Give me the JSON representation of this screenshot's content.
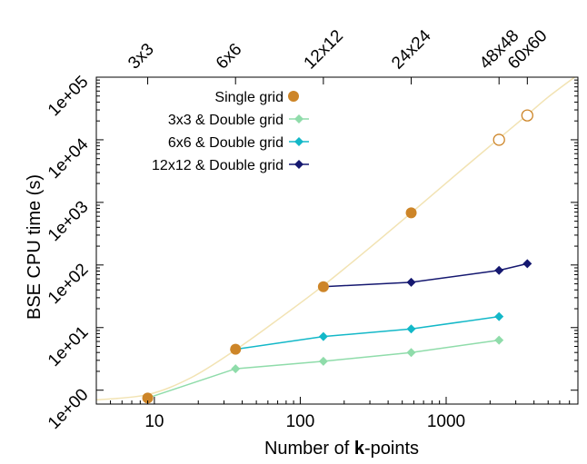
{
  "chart_data": {
    "type": "line",
    "xlabel_prefix": "Number of ",
    "xlabel_bold": "k",
    "xlabel_suffix": "-points",
    "ylabel": "BSE CPU time (s)",
    "x_scale": "log",
    "y_scale": "log",
    "xlim": [
      4,
      8000
    ],
    "ylim": [
      0.6,
      100000
    ],
    "x_ticks": [
      10,
      100,
      1000
    ],
    "x_tick_labels": [
      "10",
      "100",
      "1000"
    ],
    "y_ticks": [
      1,
      10,
      100,
      1000,
      10000,
      100000
    ],
    "y_tick_labels": [
      "1e+00",
      "1e+01",
      "1e+02",
      "1e+03",
      "1e+04",
      "1e+05"
    ],
    "top_axis_ticks": [
      {
        "x": 9,
        "label": "3x3"
      },
      {
        "x": 36,
        "label": "6x6"
      },
      {
        "x": 144,
        "label": "12x12"
      },
      {
        "x": 576,
        "label": "24x24"
      },
      {
        "x": 2304,
        "label": "48x48"
      },
      {
        "x": 3600,
        "label": "60x60"
      }
    ],
    "legend_position": "top-left",
    "series": [
      {
        "name": "Single grid",
        "color": "#cd8528",
        "marker": "circle",
        "line": false,
        "points": [
          {
            "x": 9,
            "y": 0.75,
            "filled": true
          },
          {
            "x": 36,
            "y": 4.5,
            "filled": true
          },
          {
            "x": 144,
            "y": 45,
            "filled": true
          },
          {
            "x": 576,
            "y": 680,
            "filled": true
          },
          {
            "x": 2304,
            "y": 10000,
            "filled": false
          },
          {
            "x": 3600,
            "y": 24500,
            "filled": false
          }
        ]
      },
      {
        "name": "3x3 & Double grid",
        "color": "#8fdcaa",
        "marker": "diamond",
        "line": true,
        "points": [
          {
            "x": 9,
            "y": 0.75
          },
          {
            "x": 36,
            "y": 2.2
          },
          {
            "x": 144,
            "y": 2.9
          },
          {
            "x": 576,
            "y": 4.0
          },
          {
            "x": 2304,
            "y": 6.3
          }
        ]
      },
      {
        "name": "6x6 & Double grid",
        "color": "#13b8c8",
        "marker": "diamond",
        "line": true,
        "points": [
          {
            "x": 36,
            "y": 4.5
          },
          {
            "x": 144,
            "y": 7.2
          },
          {
            "x": 576,
            "y": 9.5
          },
          {
            "x": 2304,
            "y": 15
          }
        ]
      },
      {
        "name": "12x12 & Double grid",
        "color": "#151870",
        "marker": "diamond",
        "line": true,
        "points": [
          {
            "x": 144,
            "y": 45
          },
          {
            "x": 576,
            "y": 53
          },
          {
            "x": 2304,
            "y": 82
          },
          {
            "x": 3600,
            "y": 105
          }
        ]
      }
    ],
    "fit_curve": {
      "color": "#f2e3b3",
      "points": [
        {
          "x": 4,
          "y": 0.7
        },
        {
          "x": 9,
          "y": 0.85
        },
        {
          "x": 18,
          "y": 1.6
        },
        {
          "x": 36,
          "y": 4.4
        },
        {
          "x": 72,
          "y": 14
        },
        {
          "x": 144,
          "y": 47
        },
        {
          "x": 288,
          "y": 175
        },
        {
          "x": 576,
          "y": 680
        },
        {
          "x": 1152,
          "y": 2700
        },
        {
          "x": 2304,
          "y": 10500
        },
        {
          "x": 3600,
          "y": 25000
        },
        {
          "x": 5000,
          "y": 48000
        },
        {
          "x": 7600,
          "y": 100000
        }
      ]
    }
  }
}
